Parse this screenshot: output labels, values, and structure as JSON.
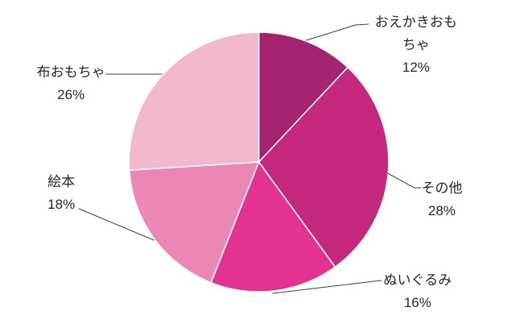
{
  "chart_data": {
    "type": "pie",
    "title": "",
    "legend": "none",
    "start_angle_deg": 0,
    "direction": "clockwise",
    "categories": [
      "おえかきおもちゃ",
      "その他",
      "ぬいぐるみ",
      "絵本",
      "布おもちゃ"
    ],
    "values": [
      12,
      28,
      16,
      18,
      26
    ],
    "unit": "%",
    "slices": [
      {
        "key": "oekaki-omocha",
        "label": "おえかきおもちゃ",
        "value": 12,
        "pct": "12%",
        "color": "#a4246f",
        "lines": [
          "おえかきおも",
          "ちゃ",
          "12%"
        ]
      },
      {
        "key": "sonota",
        "label": "その他",
        "value": 28,
        "pct": "28%",
        "color": "#c5297e",
        "lines": [
          "その他",
          "28%"
        ]
      },
      {
        "key": "nuigurumi",
        "label": "ぬいぐるみ",
        "value": 16,
        "pct": "16%",
        "color": "#e43290",
        "lines": [
          "ぬいぐるみ",
          "16%"
        ]
      },
      {
        "key": "ehon",
        "label": "絵本",
        "value": 18,
        "pct": "18%",
        "color": "#ea87b4",
        "lines": [
          "絵本",
          "18%"
        ]
      },
      {
        "key": "nuno-omocha",
        "label": "布おもちゃ",
        "value": 26,
        "pct": "26%",
        "color": "#f2b6cf",
        "lines": [
          "布おもちゃ",
          "26%"
        ]
      }
    ],
    "style": {
      "background": "#ffffff",
      "slice_border_color": "#ffffff",
      "leader_line_color": "#404040",
      "label_text_color": "#262626"
    }
  }
}
